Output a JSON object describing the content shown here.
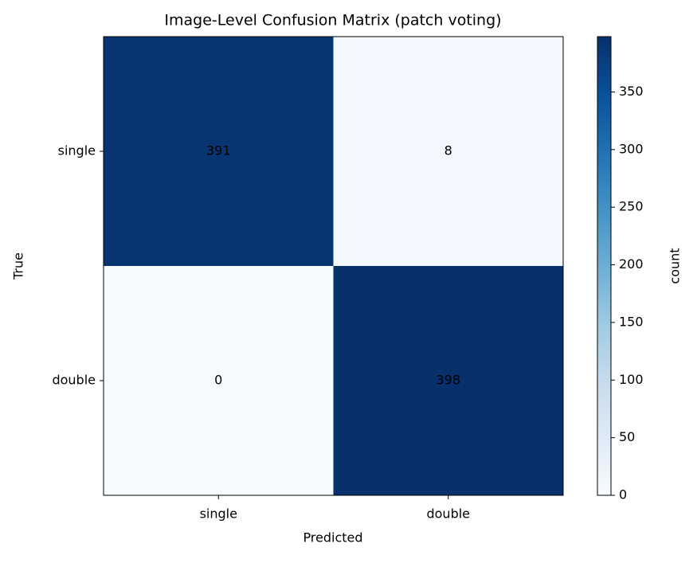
{
  "chart_data": {
    "type": "heatmap",
    "title": "Image-Level Confusion Matrix (patch voting)",
    "xlabel": "Predicted",
    "ylabel": "True",
    "x_categories": [
      "single",
      "double"
    ],
    "y_categories": [
      "single",
      "double"
    ],
    "values": [
      [
        391,
        8
      ],
      [
        0,
        398
      ]
    ],
    "colorbar_label": "count",
    "clim": [
      0,
      398
    ],
    "cticks": [
      0,
      50,
      100,
      150,
      200,
      250,
      300,
      350
    ],
    "colormap": [
      "#f7fbff",
      "#deebf7",
      "#c6dbef",
      "#9ecae1",
      "#6baed6",
      "#4292c6",
      "#2171b5",
      "#08519c",
      "#08306b"
    ],
    "text_color": "#000000"
  }
}
